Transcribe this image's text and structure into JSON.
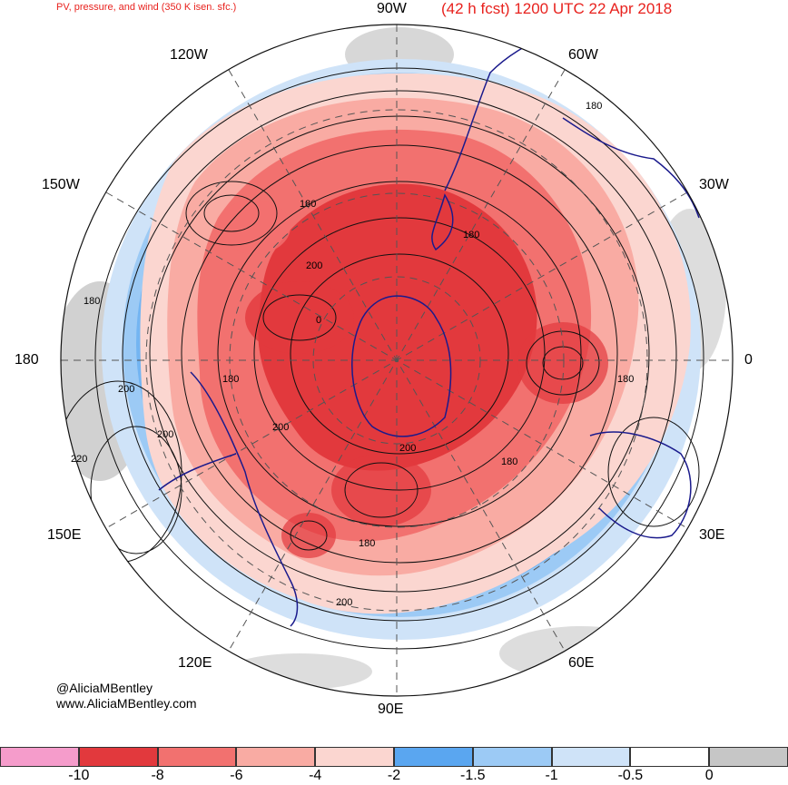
{
  "title": {
    "left": "PV, pressure, and wind (350 K isen. sfc.)",
    "right": "(42 h fcst) 1200 UTC 22 Apr 2018"
  },
  "longitude_labels": {
    "w90": "90W",
    "w60": "60W",
    "w30": "30W",
    "e0": "0",
    "e30": "30E",
    "e60": "60E",
    "e90": "90E",
    "e120": "120E",
    "e150": "150E",
    "e180": "180",
    "w150": "150W",
    "w120": "120W"
  },
  "contour_labels": [
    "180",
    "180",
    "180",
    "200",
    "0",
    "180",
    "200",
    "180",
    "200",
    "180",
    "200",
    "200",
    "180",
    "200",
    "220",
    "180"
  ],
  "credit": {
    "handle": "@AliciaMBentley",
    "website": "www.AliciaMBentley.com"
  },
  "colorbar": {
    "colors": [
      "#f59ccb",
      "#e2393d",
      "#f2716f",
      "#f9aba3",
      "#fbd6d0",
      "#5aa6f0",
      "#9ccaf5",
      "#cfe3f8",
      "#ffffff",
      "#c6c6c6"
    ],
    "ticks": [
      "-10",
      "-8",
      "-6",
      "-4",
      "-2",
      "-1.5",
      "-1",
      "-0.5",
      "0"
    ]
  },
  "colors": {
    "title": "#e8221e",
    "coastline": "#1a1a8c"
  }
}
